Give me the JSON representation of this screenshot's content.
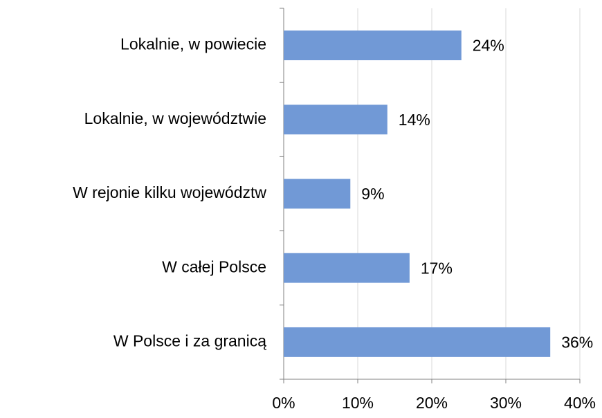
{
  "chart_data": {
    "type": "hbar",
    "categories": [
      "Lokalnie, w powiecie",
      "Lokalnie, w województwie",
      "W rejonie kilku województw",
      "W całej Polsce",
      "W Polsce i za granicą"
    ],
    "values": [
      24,
      14,
      9,
      17,
      36
    ],
    "value_labels": [
      "24%",
      "14%",
      "9%",
      "17%",
      "36%"
    ],
    "color": "#7199d6",
    "xlim": [
      0,
      40
    ],
    "xticks": [
      {
        "value": 0,
        "label": "0%"
      },
      {
        "value": 10,
        "label": "10%"
      },
      {
        "value": 20,
        "label": "20%"
      },
      {
        "value": 30,
        "label": "30%"
      },
      {
        "value": 40,
        "label": "40%"
      }
    ],
    "grid": true
  }
}
